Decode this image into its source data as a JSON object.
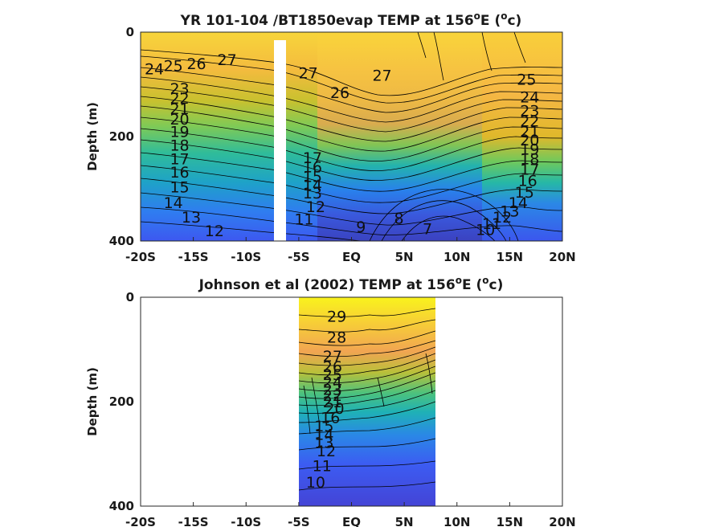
{
  "chart_data": [
    {
      "type": "heatmap",
      "title": "YR 101-104 /BT1850evap TEMP at 156",
      "title_sup": "o",
      "title_mid": "E (",
      "title_sup2": "o",
      "title_end": "c)",
      "ylabel": "Depth (m)",
      "xlim": [
        -20,
        20
      ],
      "ylim": [
        0,
        400
      ],
      "y_reversed": true,
      "x_ticks": [
        "-20S",
        "-15S",
        "-10S",
        "-5S",
        "EQ",
        "5N",
        "10N",
        "15N",
        "20N"
      ],
      "y_ticks": [
        "0",
        "200",
        "400"
      ],
      "colormap": "parula",
      "data_gap_x": [
        -7.6,
        -6.5
      ],
      "contour_labels": [
        {
          "x": -18.7,
          "y": 70,
          "t": "24"
        },
        {
          "x": -16.9,
          "y": 64,
          "t": "25"
        },
        {
          "x": -14.7,
          "y": 60,
          "t": "26"
        },
        {
          "x": -11.8,
          "y": 52,
          "t": "27"
        },
        {
          "x": -4.1,
          "y": 78,
          "t": "27"
        },
        {
          "x": 2.9,
          "y": 82,
          "t": "27"
        },
        {
          "x": -1.1,
          "y": 115,
          "t": "26"
        },
        {
          "x": -16.3,
          "y": 108,
          "t": "23"
        },
        {
          "x": -16.3,
          "y": 126,
          "t": "22"
        },
        {
          "x": -16.3,
          "y": 146,
          "t": "21"
        },
        {
          "x": -16.3,
          "y": 166,
          "t": "20"
        },
        {
          "x": -16.3,
          "y": 190,
          "t": "19"
        },
        {
          "x": -16.3,
          "y": 216,
          "t": "18"
        },
        {
          "x": -16.3,
          "y": 242,
          "t": "17"
        },
        {
          "x": -16.3,
          "y": 268,
          "t": "16"
        },
        {
          "x": -16.3,
          "y": 296,
          "t": "15"
        },
        {
          "x": -16.9,
          "y": 326,
          "t": "14"
        },
        {
          "x": -15.2,
          "y": 354,
          "t": "13"
        },
        {
          "x": -13.0,
          "y": 380,
          "t": "12"
        },
        {
          "x": -3.7,
          "y": 240,
          "t": "17"
        },
        {
          "x": -3.7,
          "y": 258,
          "t": "16"
        },
        {
          "x": -3.7,
          "y": 276,
          "t": "15"
        },
        {
          "x": -3.7,
          "y": 292,
          "t": "14"
        },
        {
          "x": -3.7,
          "y": 308,
          "t": "13"
        },
        {
          "x": -3.4,
          "y": 334,
          "t": "12"
        },
        {
          "x": -4.5,
          "y": 358,
          "t": "11"
        },
        {
          "x": 0.9,
          "y": 372,
          "t": "9"
        },
        {
          "x": 4.5,
          "y": 356,
          "t": "8"
        },
        {
          "x": 7.2,
          "y": 376,
          "t": "7"
        },
        {
          "x": 16.6,
          "y": 90,
          "t": "25"
        },
        {
          "x": 16.9,
          "y": 124,
          "t": "24"
        },
        {
          "x": 16.9,
          "y": 150,
          "t": "23"
        },
        {
          "x": 16.9,
          "y": 170,
          "t": "22"
        },
        {
          "x": 16.9,
          "y": 190,
          "t": "21"
        },
        {
          "x": 16.9,
          "y": 206,
          "t": "20"
        },
        {
          "x": 16.9,
          "y": 224,
          "t": "19"
        },
        {
          "x": 16.9,
          "y": 242,
          "t": "18"
        },
        {
          "x": 16.9,
          "y": 262,
          "t": "17"
        },
        {
          "x": 16.7,
          "y": 284,
          "t": "16"
        },
        {
          "x": 16.4,
          "y": 306,
          "t": "15"
        },
        {
          "x": 15.8,
          "y": 326,
          "t": "14"
        },
        {
          "x": 15.0,
          "y": 342,
          "t": "13"
        },
        {
          "x": 14.3,
          "y": 354,
          "t": "12"
        },
        {
          "x": 13.3,
          "y": 366,
          "t": "11"
        },
        {
          "x": 12.7,
          "y": 378,
          "t": "10"
        }
      ]
    },
    {
      "type": "heatmap",
      "title": "Johnson et al (2002) TEMP at 156",
      "title_sup": "o",
      "title_mid": "E (",
      "title_sup2": "o",
      "title_end": "c)",
      "ylabel": "Depth (m)",
      "xlim": [
        -20,
        20
      ],
      "ylim": [
        0,
        400
      ],
      "y_reversed": true,
      "x_ticks": [
        "-20S",
        "-15S",
        "-10S",
        "-5S",
        "EQ",
        "5N",
        "10N",
        "15N",
        "20N"
      ],
      "y_ticks": [
        "0",
        "200",
        "400"
      ],
      "colormap": "parula",
      "data_extent_x": [
        -5,
        8
      ],
      "contour_labels": [
        {
          "x": -1.4,
          "y": 36,
          "t": "29"
        },
        {
          "x": -1.4,
          "y": 76,
          "t": "28"
        },
        {
          "x": -1.8,
          "y": 112,
          "t": "27"
        },
        {
          "x": -1.8,
          "y": 132,
          "t": "26"
        },
        {
          "x": -1.8,
          "y": 148,
          "t": "25"
        },
        {
          "x": -1.8,
          "y": 162,
          "t": "24"
        },
        {
          "x": -1.8,
          "y": 176,
          "t": "23"
        },
        {
          "x": -1.8,
          "y": 188,
          "t": "22"
        },
        {
          "x": -1.8,
          "y": 200,
          "t": "21"
        },
        {
          "x": -1.6,
          "y": 212,
          "t": "20"
        },
        {
          "x": -2.0,
          "y": 230,
          "t": "16"
        },
        {
          "x": -2.6,
          "y": 246,
          "t": "15"
        },
        {
          "x": -2.6,
          "y": 262,
          "t": "14"
        },
        {
          "x": -2.6,
          "y": 278,
          "t": "13"
        },
        {
          "x": -2.4,
          "y": 294,
          "t": "12"
        },
        {
          "x": -2.8,
          "y": 322,
          "t": "11"
        },
        {
          "x": -3.4,
          "y": 354,
          "t": "10"
        }
      ]
    }
  ]
}
